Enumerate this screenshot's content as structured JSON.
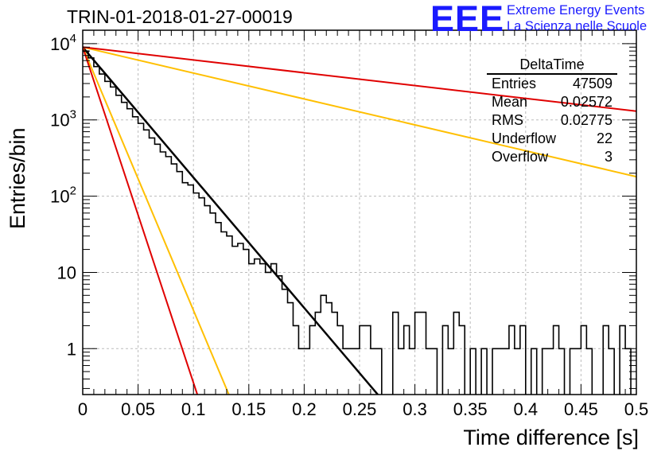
{
  "title": "TRIN-01-2018-01-27-00019",
  "logo": {
    "mark": "EEE",
    "line1": "Extreme Energy Events",
    "line2": "La Scienza nelle Scuole",
    "color": "#1a1aff"
  },
  "stats": {
    "name": "DeltaTime",
    "rows": [
      {
        "label": "Entries",
        "value": "47509"
      },
      {
        "label": "Mean",
        "value": "0.02572"
      },
      {
        "label": "RMS",
        "value": "0.02775"
      },
      {
        "label": "Underflow",
        "value": "22"
      },
      {
        "label": "Overflow",
        "value": "3"
      }
    ]
  },
  "chart_data": {
    "type": "histogram",
    "xlabel": "Time difference [s]",
    "ylabel": "Entries/bin",
    "xlim": [
      0,
      0.5
    ],
    "ylim": [
      0.25,
      15000
    ],
    "ylog": true,
    "grid": true,
    "x_ticks": [
      0,
      0.05,
      0.1,
      0.15,
      0.2,
      0.25,
      0.3,
      0.35,
      0.4,
      0.45,
      0.5
    ],
    "x_tick_labels": [
      "0",
      "0.05",
      "0.1",
      "0.15",
      "0.2",
      "0.25",
      "0.3",
      "0.35",
      "0.4",
      "0.45",
      "0.5"
    ],
    "y_ticks": [
      1,
      10,
      100,
      1000,
      10000
    ],
    "y_tick_labels": [
      {
        "base": "1",
        "exp": ""
      },
      {
        "base": "10",
        "exp": ""
      },
      {
        "base": "10",
        "exp": "2"
      },
      {
        "base": "10",
        "exp": "3"
      },
      {
        "base": "10",
        "exp": "4"
      }
    ],
    "bin_width": 0.005,
    "histogram_points": [
      [
        0.005,
        8000
      ],
      [
        0.01,
        6500
      ],
      [
        0.015,
        5000
      ],
      [
        0.02,
        4000
      ],
      [
        0.025,
        3200
      ],
      [
        0.03,
        2700
      ],
      [
        0.035,
        2100
      ],
      [
        0.04,
        1700
      ],
      [
        0.045,
        1400
      ],
      [
        0.05,
        1100
      ],
      [
        0.055,
        900
      ],
      [
        0.06,
        740
      ],
      [
        0.065,
        580
      ],
      [
        0.07,
        480
      ],
      [
        0.075,
        380
      ],
      [
        0.08,
        330
      ],
      [
        0.085,
        265
      ],
      [
        0.09,
        210
      ],
      [
        0.095,
        150
      ],
      [
        0.1,
        140
      ],
      [
        0.105,
        110
      ],
      [
        0.11,
        95
      ],
      [
        0.115,
        75
      ],
      [
        0.12,
        60
      ],
      [
        0.125,
        45
      ],
      [
        0.13,
        34
      ],
      [
        0.135,
        30
      ],
      [
        0.14,
        22
      ],
      [
        0.145,
        24
      ],
      [
        0.15,
        20
      ],
      [
        0.155,
        13
      ],
      [
        0.16,
        15
      ],
      [
        0.165,
        13
      ],
      [
        0.17,
        10
      ],
      [
        0.175,
        13
      ],
      [
        0.18,
        9
      ],
      [
        0.185,
        6
      ],
      [
        0.19,
        4
      ],
      [
        0.195,
        2
      ],
      [
        0.2,
        1
      ],
      [
        0.205,
        1
      ],
      [
        0.21,
        2
      ],
      [
        0.215,
        3
      ],
      [
        0.22,
        5
      ],
      [
        0.225,
        4
      ],
      [
        0.23,
        3
      ],
      [
        0.235,
        2
      ],
      [
        0.24,
        1
      ],
      [
        0.245,
        1
      ],
      [
        0.25,
        1
      ],
      [
        0.255,
        2
      ],
      [
        0.26,
        2
      ],
      [
        0.265,
        1
      ],
      [
        0.27,
        1
      ],
      [
        0.275,
        0
      ],
      [
        0.28,
        0
      ],
      [
        0.285,
        3
      ],
      [
        0.29,
        1
      ],
      [
        0.295,
        2
      ],
      [
        0.3,
        1
      ],
      [
        0.305,
        3
      ],
      [
        0.31,
        3
      ],
      [
        0.315,
        1
      ],
      [
        0.32,
        1
      ],
      [
        0.325,
        0
      ],
      [
        0.33,
        2
      ],
      [
        0.335,
        1
      ],
      [
        0.34,
        3
      ],
      [
        0.345,
        2
      ],
      [
        0.35,
        0
      ],
      [
        0.355,
        1
      ],
      [
        0.36,
        0
      ],
      [
        0.365,
        1
      ],
      [
        0.37,
        0
      ],
      [
        0.375,
        1
      ],
      [
        0.38,
        1
      ],
      [
        0.385,
        1
      ],
      [
        0.39,
        2
      ],
      [
        0.395,
        1
      ],
      [
        0.4,
        2
      ],
      [
        0.405,
        0
      ],
      [
        0.41,
        1
      ],
      [
        0.415,
        0
      ],
      [
        0.42,
        1
      ],
      [
        0.425,
        1
      ],
      [
        0.43,
        2
      ],
      [
        0.435,
        1
      ],
      [
        0.44,
        0
      ],
      [
        0.445,
        1
      ],
      [
        0.45,
        1
      ],
      [
        0.455,
        2
      ],
      [
        0.46,
        1
      ],
      [
        0.465,
        0
      ],
      [
        0.47,
        0
      ],
      [
        0.475,
        2
      ],
      [
        0.48,
        1
      ],
      [
        0.485,
        0
      ],
      [
        0.49,
        2
      ],
      [
        0.495,
        1
      ],
      [
        0.5,
        0
      ]
    ],
    "fit_lines": [
      {
        "color": "#000000",
        "width": 2.5,
        "points": [
          [
            0,
            9000
          ],
          [
            0.2665,
            0.25
          ]
        ]
      },
      {
        "color": "#ffbf00",
        "width": 2,
        "points": [
          [
            0,
            9000
          ],
          [
            0.5,
            180
          ]
        ]
      },
      {
        "color": "#ffbf00",
        "width": 2,
        "points": [
          [
            0,
            9000
          ],
          [
            0.132,
            0.25
          ]
        ]
      },
      {
        "color": "#e00000",
        "width": 2,
        "points": [
          [
            0,
            9000
          ],
          [
            0.5,
            1300
          ]
        ]
      },
      {
        "color": "#e00000",
        "width": 2,
        "points": [
          [
            0,
            9000
          ],
          [
            0.1035,
            0.25
          ]
        ]
      }
    ],
    "colors": {
      "histogram": "#000000",
      "grid": "#bbbbbb",
      "axis": "#000000"
    }
  }
}
